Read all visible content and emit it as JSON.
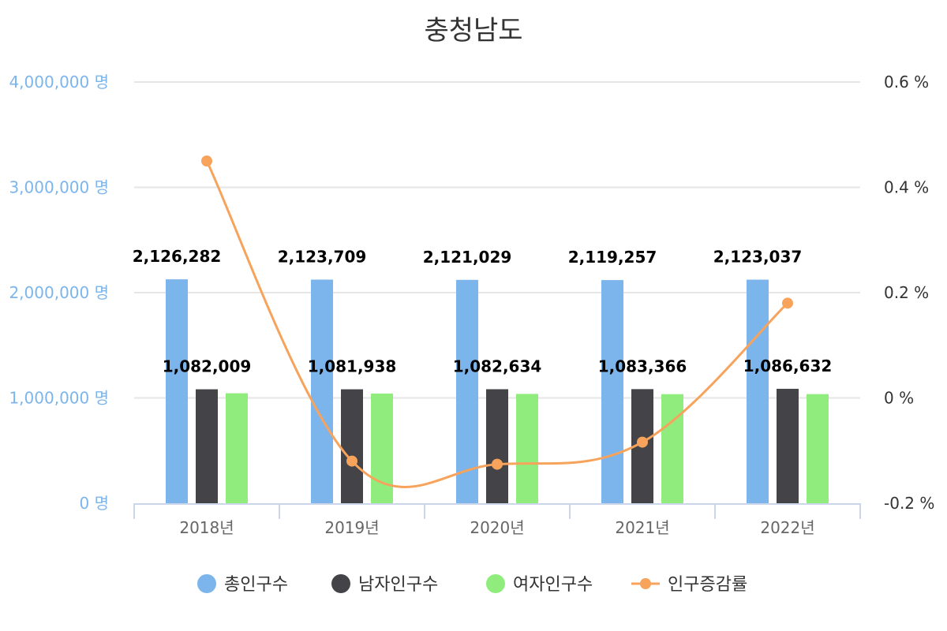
{
  "chart_data": {
    "type": "bar",
    "title": "충청남도",
    "categories": [
      "2018년",
      "2019년",
      "2020년",
      "2021년",
      "2022년"
    ],
    "series": [
      {
        "name": "총인구수",
        "kind": "bar",
        "axis": "left",
        "color": "#7cb5ec",
        "values": [
          2126282,
          2123709,
          2121029,
          2119257,
          2123037
        ],
        "labels": [
          "2,126,282",
          "2,123,709",
          "2,121,029",
          "2,119,257",
          "2,123,037"
        ]
      },
      {
        "name": "남자인구수",
        "kind": "bar",
        "axis": "left",
        "color": "#434348",
        "values": [
          1082009,
          1081938,
          1082634,
          1083366,
          1086632
        ],
        "labels": [
          "1,082,009",
          "1,081,938",
          "1,082,634",
          "1,083,366",
          "1,086,632"
        ]
      },
      {
        "name": "여자인구수",
        "kind": "bar",
        "axis": "left",
        "color": "#90ed7d",
        "values": [
          1044273,
          1041771,
          1038395,
          1035891,
          1036405
        ]
      },
      {
        "name": "인구증감률",
        "kind": "line",
        "axis": "right",
        "color": "#f7a35c",
        "values": [
          0.45,
          -0.12,
          -0.126,
          -0.084,
          0.18
        ]
      }
    ],
    "y_left": {
      "min": 0,
      "max": 4000000,
      "ticks": [
        "0 명",
        "1,000,000 명",
        "2,000,000 명",
        "3,000,000 명",
        "4,000,000 명"
      ],
      "tick_values": [
        0,
        1000000,
        2000000,
        3000000,
        4000000
      ]
    },
    "y_right": {
      "min": -0.2,
      "max": 0.6,
      "ticks": [
        "-0.2 %",
        "0 %",
        "0.2 %",
        "0.4 %",
        "0.6 %"
      ],
      "tick_values": [
        -0.2,
        0,
        0.2,
        0.4,
        0.6
      ]
    },
    "grid": true,
    "legend_position": "bottom-center"
  }
}
